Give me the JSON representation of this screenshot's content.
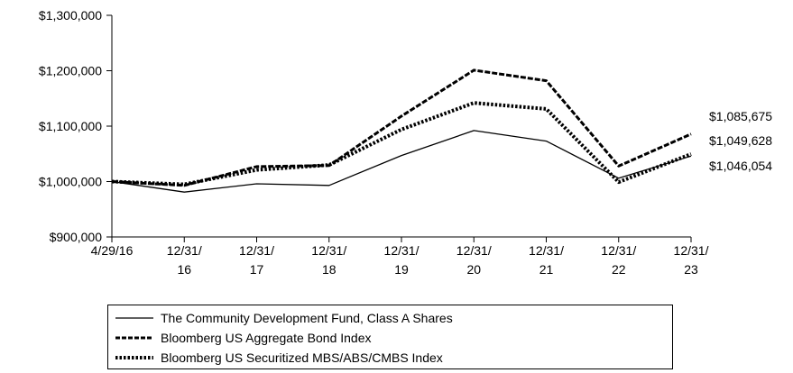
{
  "chart_data": {
    "type": "line",
    "x": [
      "4/29/16",
      "12/31/16",
      "12/31/17",
      "12/31/18",
      "12/31/19",
      "12/31/20",
      "12/31/21",
      "12/31/22",
      "12/31/23"
    ],
    "x_tick_labels": [
      [
        "4/29/16"
      ],
      [
        "12/31/",
        "16"
      ],
      [
        "12/31/",
        "17"
      ],
      [
        "12/31/",
        "18"
      ],
      [
        "12/31/",
        "19"
      ],
      [
        "12/31/",
        "20"
      ],
      [
        "12/31/",
        "21"
      ],
      [
        "12/31/",
        "22"
      ],
      [
        "12/31/",
        "23"
      ]
    ],
    "ylim": [
      900000,
      1300000
    ],
    "y_ticks": [
      900000,
      1000000,
      1100000,
      1200000,
      1300000
    ],
    "y_tick_labels": [
      "$900,000",
      "$1,000,000",
      "$1,100,000",
      "$1,200,000",
      "$1,300,000"
    ],
    "series": [
      {
        "name": "The Community Development Fund, Class A Shares",
        "style": "solid",
        "values": [
          1000000,
          981000,
          996000,
          993000,
          1047000,
          1092000,
          1073000,
          1006000,
          1046054
        ]
      },
      {
        "name": "Bloomberg US Aggregate Bond Index",
        "style": "dashed",
        "values": [
          1000000,
          993000,
          1027000,
          1029000,
          1118000,
          1201000,
          1182000,
          1028000,
          1085675
        ]
      },
      {
        "name": "Bloomberg US Securitized MBS/ABS/CMBS Index",
        "style": "dotted",
        "values": [
          1000000,
          995000,
          1021000,
          1030000,
          1094000,
          1142000,
          1131000,
          999000,
          1049628
        ]
      }
    ],
    "end_labels": [
      "$1,085,675",
      "$1,049,628",
      "$1,046,054"
    ],
    "grid": false,
    "legend_position": "bottom"
  }
}
